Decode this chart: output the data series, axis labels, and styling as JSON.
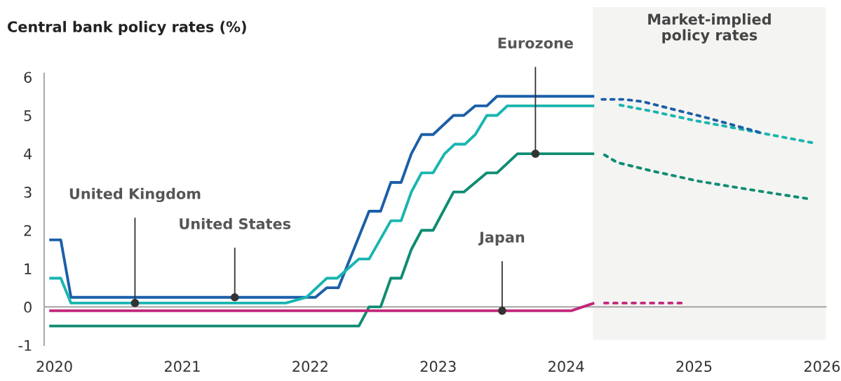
{
  "chart_data": {
    "type": "line",
    "title": "Central bank policy rates (%)",
    "xlim": [
      2019.92,
      2026.03
    ],
    "xticks": [
      2020,
      2021,
      2022,
      2023,
      2024,
      2025,
      2026
    ],
    "ylim": [
      -1,
      6.1
    ],
    "yticks": [
      -1,
      0,
      1,
      2,
      3,
      4,
      5,
      6
    ],
    "series": [
      {
        "color": "#1b5fa8",
        "line_style": "solid",
        "x": [
          2019.96,
          2020.05,
          2020.13,
          2022.04,
          2022.13,
          2022.22,
          2022.46,
          2022.55,
          2022.63,
          2022.71,
          2022.79,
          2022.87,
          2022.96,
          2023.12,
          2023.2,
          2023.29,
          2023.38,
          2023.46,
          2024.22
        ],
        "values": [
          1.75,
          1.75,
          0.25,
          0.25,
          0.5,
          0.5,
          2.5,
          2.5,
          3.25,
          3.25,
          4.0,
          4.5,
          4.5,
          5.0,
          5.0,
          5.25,
          5.25,
          5.5,
          5.5
        ]
      },
      {
        "color": "#19b5b0",
        "line_style": "solid",
        "x": [
          2019.96,
          2020.05,
          2020.13,
          2021.81,
          2021.97,
          2022.13,
          2022.21,
          2022.38,
          2022.46,
          2022.63,
          2022.71,
          2022.79,
          2022.87,
          2022.96,
          2023.05,
          2023.13,
          2023.21,
          2023.29,
          2023.38,
          2023.46,
          2023.54,
          2024.22
        ],
        "values": [
          0.75,
          0.75,
          0.1,
          0.1,
          0.25,
          0.75,
          0.75,
          1.25,
          1.25,
          2.25,
          2.25,
          3.0,
          3.5,
          3.5,
          4.0,
          4.25,
          4.25,
          4.5,
          5.0,
          5.0,
          5.25,
          5.25
        ]
      },
      {
        "color": "#0f8c73",
        "line_style": "solid",
        "x": [
          2019.96,
          2022.38,
          2022.46,
          2022.55,
          2022.63,
          2022.71,
          2022.79,
          2022.87,
          2022.96,
          2023.12,
          2023.2,
          2023.38,
          2023.46,
          2023.62,
          2024.22
        ],
        "values": [
          -0.5,
          -0.5,
          0.0,
          0.0,
          0.75,
          0.75,
          1.5,
          2.0,
          2.0,
          3.0,
          3.0,
          3.5,
          3.5,
          4.0,
          4.0
        ]
      },
      {
        "color": "#c2277c",
        "line_style": "solid",
        "x": [
          2019.96,
          2024.04,
          2024.22
        ],
        "values": [
          -0.1,
          -0.1,
          0.1
        ]
      },
      {
        "color": "#19b5b0",
        "line_style": "dotted",
        "x": [
          2024.42,
          2024.67,
          2025.0,
          2025.4,
          2025.92
        ],
        "values": [
          5.27,
          5.11,
          4.87,
          4.62,
          4.29
        ]
      },
      {
        "color": "#1b5fa8",
        "line_style": "dotted",
        "x": [
          2024.28,
          2024.45,
          2024.6,
          2024.86,
          2025.11,
          2025.51
        ],
        "values": [
          5.42,
          5.42,
          5.36,
          5.14,
          4.93,
          4.56
        ]
      },
      {
        "color": "#0f8c73",
        "line_style": "dotted",
        "x": [
          2024.3,
          2024.4,
          2024.67,
          2025.04,
          2025.44,
          2025.88
        ],
        "values": [
          3.97,
          3.77,
          3.55,
          3.28,
          3.06,
          2.83
        ]
      },
      {
        "color": "#c2277c",
        "line_style": "dotted",
        "x": [
          2024.3,
          2024.9
        ],
        "values": [
          0.1,
          0.1
        ]
      }
    ],
    "bands": [
      {
        "axis": "x",
        "from": 2024.21,
        "to": 2026.03,
        "label": "Market-implied\npolicy rates",
        "color": "#f4f4f2"
      }
    ],
    "annotations": [
      {
        "text": "United Kingdom",
        "x": 2020.63,
        "y": 0.1
      },
      {
        "text": "United States",
        "x": 2021.41,
        "y": 0.25
      },
      {
        "text": "Eurozone",
        "x": 2023.76,
        "y": 4.0
      },
      {
        "text": "Japan",
        "x": 2023.5,
        "y": -0.1
      }
    ]
  }
}
